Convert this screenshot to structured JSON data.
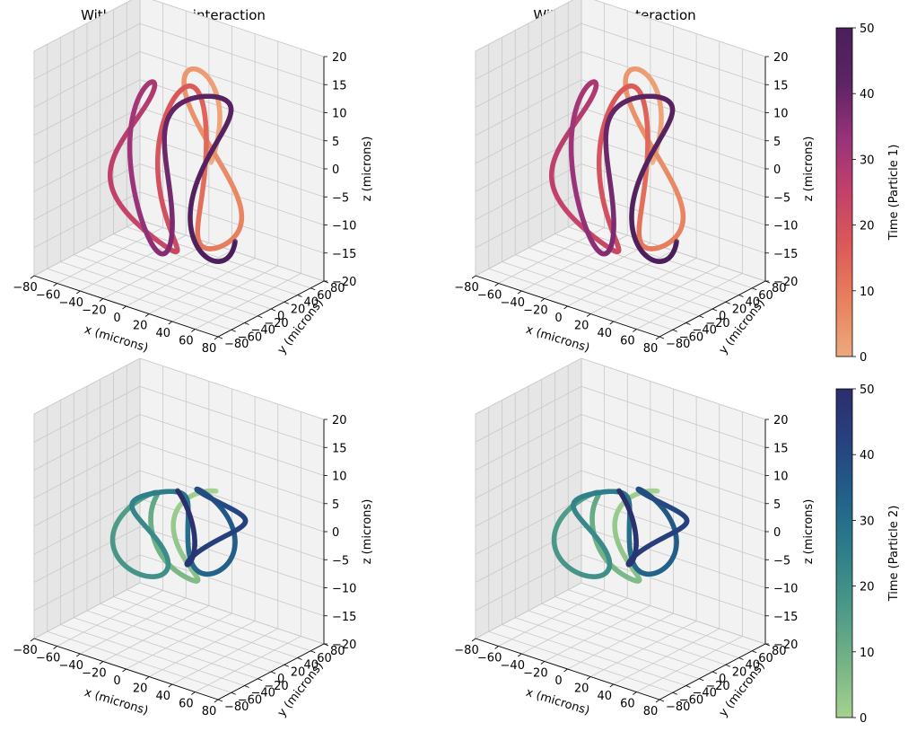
{
  "figure": {
    "titles": [
      "Without particle interaction",
      "With particle interaction"
    ]
  },
  "chart_data": [
    {
      "type": "scatter3d",
      "title": "Without particle interaction",
      "particle": 1,
      "colormap": "flare",
      "xlabel": "x (microns)",
      "ylabel": "y (microns)",
      "zlabel": "z (microns)",
      "xlim": [
        -80,
        80
      ],
      "ylim": [
        -80,
        80
      ],
      "zlim": [
        -20,
        20
      ],
      "xticks": [
        "−80",
        "−60",
        "−40",
        "−20",
        "0",
        "20",
        "40",
        "60",
        "80"
      ],
      "yticks": [
        "−80",
        "−60",
        "−40",
        "−20",
        "0",
        "20",
        "40",
        "60",
        "80"
      ],
      "zticks": [
        "−20",
        "−15",
        "−10",
        "−5",
        "0",
        "5",
        "10",
        "15",
        "20"
      ],
      "time_range": [
        0,
        50
      ],
      "trajectory": {
        "center_x": 0,
        "center_y": 0,
        "radius": 55,
        "turns": 7,
        "z_amplitude": 15
      }
    },
    {
      "type": "scatter3d",
      "title": "With particle interaction",
      "particle": 1,
      "colormap": "flare",
      "xlabel": "x (microns)",
      "ylabel": "y (microns)",
      "zlabel": "z (microns)",
      "xlim": [
        -80,
        80
      ],
      "ylim": [
        -80,
        80
      ],
      "zlim": [
        -20,
        20
      ],
      "xticks": [
        "−80",
        "−60",
        "−40",
        "−20",
        "0",
        "20",
        "40",
        "60",
        "80"
      ],
      "yticks": [
        "−80",
        "−60",
        "−40",
        "−20",
        "0",
        "20",
        "40",
        "60",
        "80"
      ],
      "zticks": [
        "−20",
        "−15",
        "−10",
        "−5",
        "0",
        "5",
        "10",
        "15",
        "20"
      ],
      "time_range": [
        0,
        50
      ],
      "trajectory": {
        "center_x": 0,
        "center_y": 0,
        "radius": 55,
        "turns": 7,
        "z_amplitude": 15
      }
    },
    {
      "type": "scatter3d",
      "title": "",
      "particle": 2,
      "colormap": "crest",
      "xlabel": "x (microns)",
      "ylabel": "y (microns)",
      "zlabel": "z (microns)",
      "xlim": [
        -80,
        80
      ],
      "ylim": [
        -80,
        80
      ],
      "zlim": [
        -20,
        20
      ],
      "xticks": [
        "−80",
        "−60",
        "−40",
        "−20",
        "0",
        "20",
        "40",
        "60",
        "80"
      ],
      "yticks": [
        "−80",
        "−60",
        "−40",
        "−20",
        "0",
        "20",
        "40",
        "60",
        "80"
      ],
      "zticks": [
        "−20",
        "−15",
        "−10",
        "−5",
        "0",
        "5",
        "10",
        "15",
        "20"
      ],
      "time_range": [
        0,
        50
      ],
      "trajectory": {
        "center_x": 0,
        "center_y": 0,
        "radius": 55,
        "turns": 7,
        "z_amplitude": 12
      }
    },
    {
      "type": "scatter3d",
      "title": "",
      "particle": 2,
      "colormap": "crest",
      "xlabel": "x (microns)",
      "ylabel": "y (microns)",
      "zlabel": "z (microns)",
      "xlim": [
        -80,
        80
      ],
      "ylim": [
        -80,
        80
      ],
      "zlim": [
        -20,
        20
      ],
      "xticks": [
        "−80",
        "−60",
        "−40",
        "−20",
        "0",
        "20",
        "40",
        "60",
        "80"
      ],
      "yticks": [
        "−80",
        "−60",
        "−40",
        "−20",
        "0",
        "20",
        "40",
        "60",
        "80"
      ],
      "zticks": [
        "−20",
        "−15",
        "−10",
        "−5",
        "0",
        "5",
        "10",
        "15",
        "20"
      ],
      "time_range": [
        0,
        50
      ],
      "trajectory": {
        "center_x": 0,
        "center_y": 0,
        "radius": 55,
        "turns": 7,
        "z_amplitude": 12
      }
    }
  ],
  "colorbars": [
    {
      "label": "Time (Particle 1)",
      "ticks": [
        "0",
        "10",
        "20",
        "30",
        "40",
        "50"
      ],
      "range": [
        0,
        50
      ],
      "colors": [
        "#eda97d",
        "#e8815e",
        "#dc5a58",
        "#c3416a",
        "#97327a",
        "#5c2463",
        "#4a1f5a"
      ]
    },
    {
      "label": "Time (Particle 2)",
      "ticks": [
        "0",
        "10",
        "20",
        "30",
        "40",
        "50"
      ],
      "range": [
        0,
        50
      ],
      "colors": [
        "#a5d190",
        "#74b386",
        "#4b9988",
        "#2f7f8a",
        "#21628a",
        "#274280",
        "#2c2e6b"
      ]
    }
  ]
}
